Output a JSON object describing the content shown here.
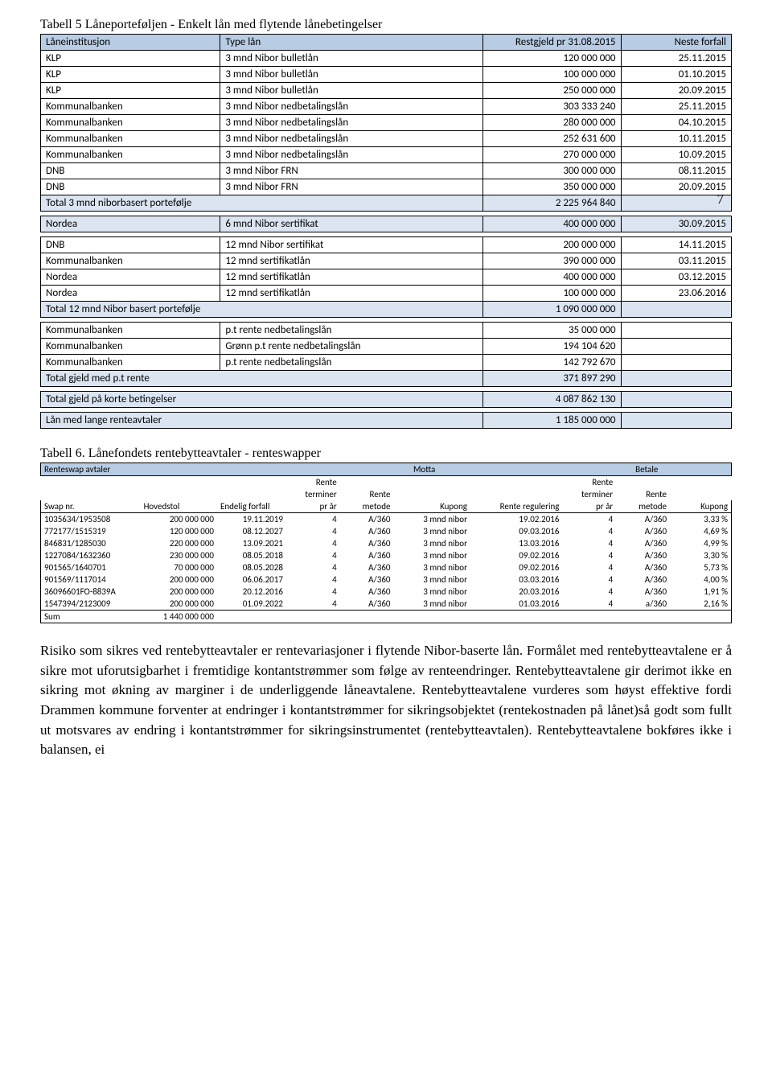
{
  "table5": {
    "caption": "Tabell 5 Låneporteføljen - Enkelt lån med flytende lånebetingelser",
    "page_number": "7",
    "colors": {
      "header_bg": "#b8cce4",
      "shade_bg": "#dbe5f1"
    },
    "header": {
      "c1": "Låneinstitusjon",
      "c2": "Type lån",
      "c3": "Restgjeld pr 31.08.2015",
      "c4": "Neste forfall"
    },
    "rows1": [
      {
        "c1": "KLP",
        "c2": "3 mnd Nibor bulletlån",
        "c3": "120 000 000",
        "c4": "25.11.2015"
      },
      {
        "c1": "KLP",
        "c2": "3 mnd Nibor bulletlån",
        "c3": "100 000 000",
        "c4": "01.10.2015"
      },
      {
        "c1": "KLP",
        "c2": "3 mnd Nibor bulletlån",
        "c3": "250 000 000",
        "c4": "20.09.2015"
      },
      {
        "c1": "Kommunalbanken",
        "c2": "3 mnd Nibor nedbetalingslån",
        "c3": "303 333 240",
        "c4": "25.11.2015"
      },
      {
        "c1": "Kommunalbanken",
        "c2": "3 mnd Nibor nedbetalingslån",
        "c3": "280 000 000",
        "c4": "04.10.2015"
      },
      {
        "c1": "Kommunalbanken",
        "c2": "3 mnd Nibor nedbetalingslån",
        "c3": "252 631 600",
        "c4": "10.11.2015"
      },
      {
        "c1": "Kommunalbanken",
        "c2": "3 mnd Nibor nedbetalingslån",
        "c3": "270 000 000",
        "c4": "10.09.2015"
      },
      {
        "c1": "DNB",
        "c2": "3 mnd Nibor FRN",
        "c3": "300 000 000",
        "c4": "08.11.2015"
      },
      {
        "c1": "DNB",
        "c2": "3 mnd Nibor FRN",
        "c3": "350 000 000",
        "c4": "20.09.2015"
      }
    ],
    "total1": {
      "label": "Total 3 mnd niborbasert portefølje",
      "val": "2 225 964 840"
    },
    "rows2": [
      {
        "c1": "Nordea",
        "c2": "6 mnd Nibor sertifikat",
        "c3": "400 000 000",
        "c4": "30.09.2015"
      }
    ],
    "rows3": [
      {
        "c1": "DNB",
        "c2": "12 mnd Nibor sertifikat",
        "c3": "200 000 000",
        "c4": "14.11.2015"
      },
      {
        "c1": "Kommunalbanken",
        "c2": "12 mnd sertifikatlån",
        "c3": "390 000 000",
        "c4": "03.11.2015"
      },
      {
        "c1": "Nordea",
        "c2": "12 mnd sertifikatlån",
        "c3": "400 000 000",
        "c4": "03.12.2015"
      },
      {
        "c1": "Nordea",
        "c2": "12 mnd sertifikatlån",
        "c3": "100 000 000",
        "c4": "23.06.2016"
      }
    ],
    "total3": {
      "label": "Total 12 mnd Nibor basert portefølje",
      "val": "1 090 000 000"
    },
    "rows4": [
      {
        "c1": "Kommunalbanken",
        "c2": "p.t rente nedbetalingslån",
        "c3": "35 000 000"
      },
      {
        "c1": "Kommunalbanken",
        "c2": "Grønn p.t rente nedbetalingslån",
        "c3": "194 104 620"
      },
      {
        "c1": "Kommunalbanken",
        "c2": "p.t rente nedbetalingslån",
        "c3": "142 792 670"
      }
    ],
    "total4": {
      "label": "Total gjeld med p.t rente",
      "val": "371 897 290"
    },
    "total5": {
      "label": "Total gjeld på korte betingelser",
      "val": "4 087 862 130"
    },
    "total6": {
      "label": "Lån med lange renteavtaler",
      "val": "1 185 000 000"
    }
  },
  "table6": {
    "caption": "Tabell 6. Lånefondets rentebytteavtaler - renteswapper",
    "header": {
      "title": "Renteswap avtaler",
      "motta": "Motta",
      "betale": "Betale"
    },
    "sub": {
      "c1": "Swap nr.",
      "c2": "Hovedstol",
      "c3": "Endelig forfall",
      "c4a": "Rente",
      "c4b": "terminer",
      "c4c": "pr år",
      "c5a": "Rente",
      "c5b": "metode",
      "c6": "Kupong",
      "c7": "Rente regulering",
      "c8a": "Rente",
      "c8b": "terminer",
      "c8c": "pr år",
      "c9a": "Rente",
      "c9b": "metode",
      "c10": "Kupong"
    },
    "rows": [
      {
        "c1": "1035634/1953508",
        "c2": "200 000 000",
        "c3": "19.11.2019",
        "c4": "4",
        "c5": "A/360",
        "c6": "3 mnd nibor",
        "c7": "19.02.2016",
        "c8": "4",
        "c9": "A/360",
        "c10": "3,33 %"
      },
      {
        "c1": "772177/1515319",
        "c2": "120 000 000",
        "c3": "08.12.2027",
        "c4": "4",
        "c5": "A/360",
        "c6": "3 mnd nibor",
        "c7": "09.03.2016",
        "c8": "4",
        "c9": "A/360",
        "c10": "4,69 %"
      },
      {
        "c1": "846831/1285030",
        "c2": "220 000 000",
        "c3": "13.09.2021",
        "c4": "4",
        "c5": "A/360",
        "c6": "3 mnd nibor",
        "c7": "13.03.2016",
        "c8": "4",
        "c9": "A/360",
        "c10": "4,99 %"
      },
      {
        "c1": "1227084/1632360",
        "c2": "230 000 000",
        "c3": "08.05.2018",
        "c4": "4",
        "c5": "A/360",
        "c6": "3 mnd nibor",
        "c7": "09.02.2016",
        "c8": "4",
        "c9": "A/360",
        "c10": "3,30 %"
      },
      {
        "c1": "901565/1640701",
        "c2": "70 000 000",
        "c3": "08.05.2028",
        "c4": "4",
        "c5": "A/360",
        "c6": "3 mnd nibor",
        "c7": "09.02.2016",
        "c8": "4",
        "c9": "A/360",
        "c10": "5,73 %"
      },
      {
        "c1": "901569/1117014",
        "c2": "200 000 000",
        "c3": "06.06.2017",
        "c4": "4",
        "c5": "A/360",
        "c6": "3 mnd nibor",
        "c7": "03.03.2016",
        "c8": "4",
        "c9": "A/360",
        "c10": "4,00 %"
      },
      {
        "c1": "36096601FO-8839A",
        "c2": "200 000 000",
        "c3": "20.12.2016",
        "c4": "4",
        "c5": "A/360",
        "c6": "3 mnd nibor",
        "c7": "20.03.2016",
        "c8": "4",
        "c9": "A/360",
        "c10": "1,91 %"
      },
      {
        "c1": "1547394/2123009",
        "c2": "200 000 000",
        "c3": "01.09.2022",
        "c4": "4",
        "c5": "A/360",
        "c6": "3 mnd nibor",
        "c7": "01.03.2016",
        "c8": "4",
        "c9": "a/360",
        "c10": "2,16 %"
      }
    ],
    "sum": {
      "label": "Sum",
      "val": "1 440 000 000"
    }
  },
  "paragraph": "Risiko som sikres ved rentebytteavtaler er rentevariasjoner i flytende Nibor-baserte lån. Formålet med rentebytteavtalene er å sikre mot uforutsigbarhet i fremtidige kontantstrømmer som følge av renteendringer. Rentebytteavtalene gir derimot ikke en sikring mot økning av marginer i de underliggende låneavtalene. Rentebytteavtalene vurderes som høyst effektive fordi Drammen kommune forventer at endringer i kontantstrømmer for sikringsobjektet (rentekostnaden på lånet)så godt som fullt ut motsvares av endring i kontantstrømmer for sikringsinstrumentet (rentebytteavtalen). Rentebytteavtalene bokføres ikke i balansen, ei"
}
